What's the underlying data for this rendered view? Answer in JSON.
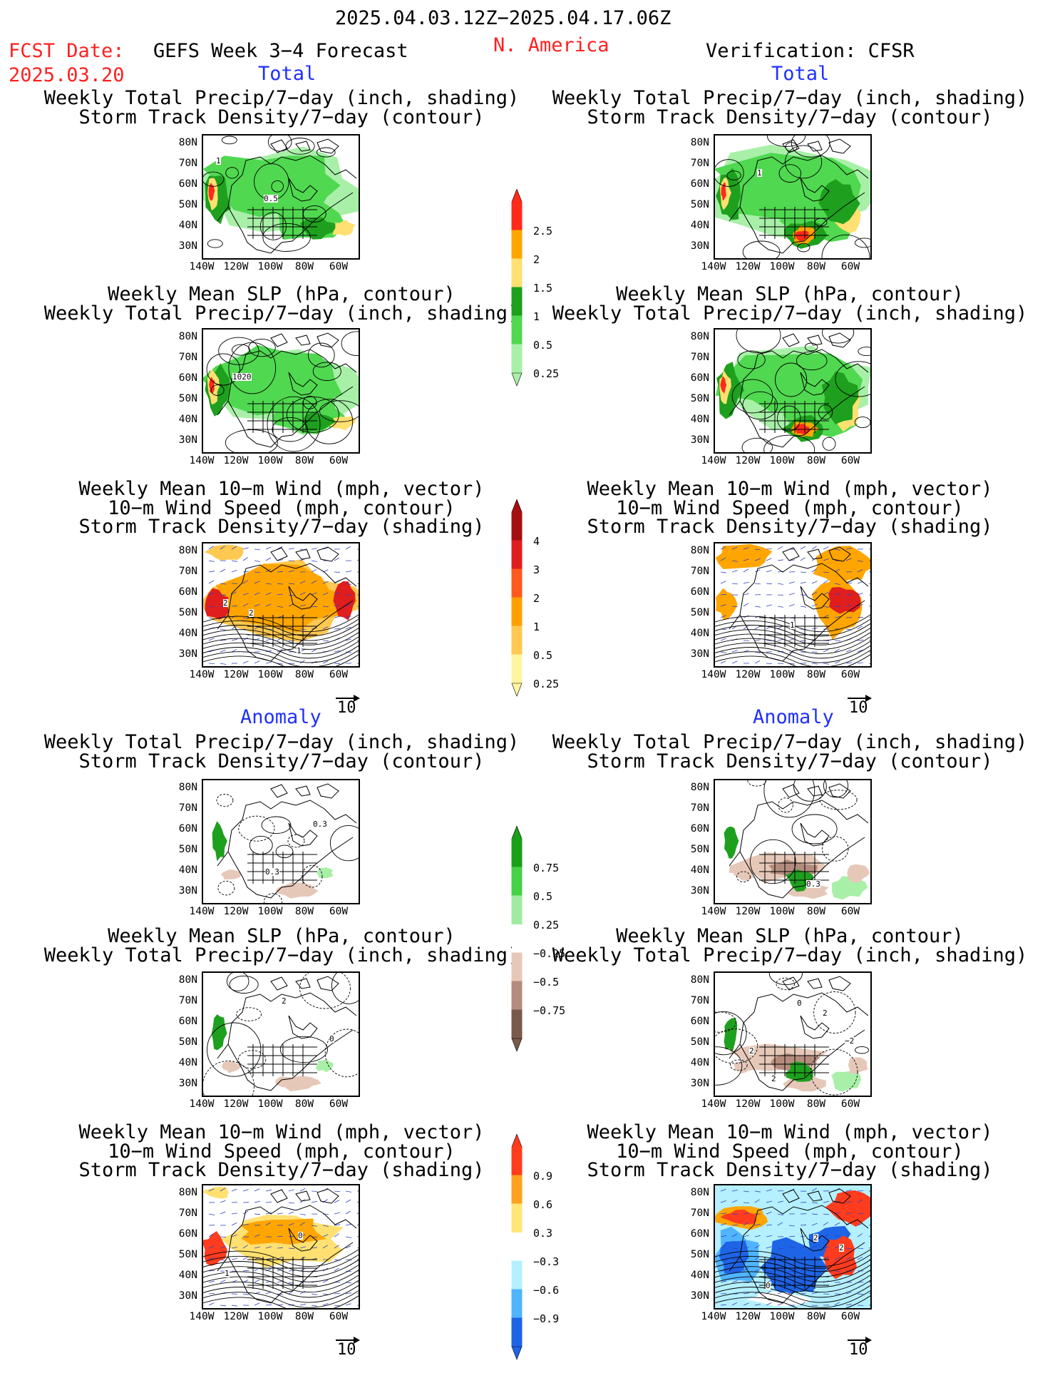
{
  "header": {
    "time_range": "2025.04.03.12Z−2025.04.17.06Z",
    "fcst_label": "FCST Date:",
    "fcst_date": "2025.03.20",
    "forecast_title": "GEFS Week 3−4 Forecast",
    "region": "N. America",
    "verification": "Verification: CFSR"
  },
  "sections": {
    "total": "Total",
    "anomaly": "Anomaly"
  },
  "panel_titles": {
    "precip_storm": [
      "Weekly Total Precip/7−day (inch, shading)",
      "Storm Track Density/7−day (contour)"
    ],
    "slp_precip": [
      "Weekly Mean SLP (hPa, contour)",
      "Weekly Total Precip/7−day (inch, shading)"
    ],
    "wind_storm": [
      "Weekly Mean 10−m Wind (mph, vector)",
      "10−m Wind Speed (mph, contour)",
      "Storm Track Density/7−day (shading)"
    ]
  },
  "axes": {
    "lat_labels": [
      "80N",
      "70N",
      "60N",
      "50N",
      "40N",
      "30N"
    ],
    "lon_labels": [
      "140W",
      "120W",
      "100W",
      "80W",
      "60W"
    ]
  },
  "vector_ref": "10",
  "map_labels": {
    "r1_left": [
      "1",
      "0.5"
    ],
    "r1_right": [
      "1"
    ],
    "r2_left": [
      "1020"
    ],
    "r3_left": [
      "2",
      "1",
      "2"
    ],
    "r3_right": [
      "1"
    ],
    "r4_left": [
      "0.3",
      "0.3"
    ],
    "r4_right": [
      "0.3"
    ],
    "r5_left": [
      "2",
      "0"
    ],
    "r5_right": [
      "2",
      "2",
      "0",
      "−2",
      "2"
    ],
    "r6_left": [
      "0",
      "1"
    ],
    "r6_right": [
      "2",
      "0",
      "2"
    ]
  },
  "colorbars": {
    "precip_total": {
      "labels": [
        "2.5",
        "2",
        "1.5",
        "1",
        "0.5",
        "0.25"
      ],
      "colors": [
        "#ff2a1a",
        "#ffa500",
        "#ffe070",
        "#1ea01e",
        "#50d850",
        "#a8f0a8"
      ]
    },
    "storm_total": {
      "labels": [
        "4",
        "3",
        "2",
        "1",
        "0.5",
        "0.25"
      ],
      "colors": [
        "#a50f0f",
        "#e01e1e",
        "#ff5a1e",
        "#ffa000",
        "#ffc850",
        "#fff5a0"
      ]
    },
    "precip_anom": {
      "labels": [
        "0.75",
        "0.5",
        "0.25",
        "−0.25",
        "−0.5",
        "−0.75"
      ],
      "colors": [
        "#19a019",
        "#46d246",
        "#a0eba0",
        "#ffffff",
        "#e6c8b9",
        "#b48c7d",
        "#785a4b"
      ]
    },
    "storm_anom": {
      "labels": [
        "0.9",
        "0.6",
        "0.3",
        "−0.3",
        "−0.6",
        "−0.9"
      ],
      "colors": [
        "#ff3c1e",
        "#ffa01e",
        "#ffe678",
        "#ffffff",
        "#b4f0ff",
        "#50b4ff",
        "#1e64e6"
      ]
    }
  },
  "colors": {
    "green_light": "#a8f0a8",
    "green_mid": "#50d850",
    "green_dark": "#1ea01e",
    "yellow": "#ffe070",
    "orange": "#ffa500",
    "red": "#ff2a1a",
    "brown_light": "#e6c8b9",
    "brown_mid": "#b48c7d",
    "blue_light": "#b4f0ff",
    "blue_mid": "#50b4ff",
    "blue_dark": "#1e64e6"
  }
}
